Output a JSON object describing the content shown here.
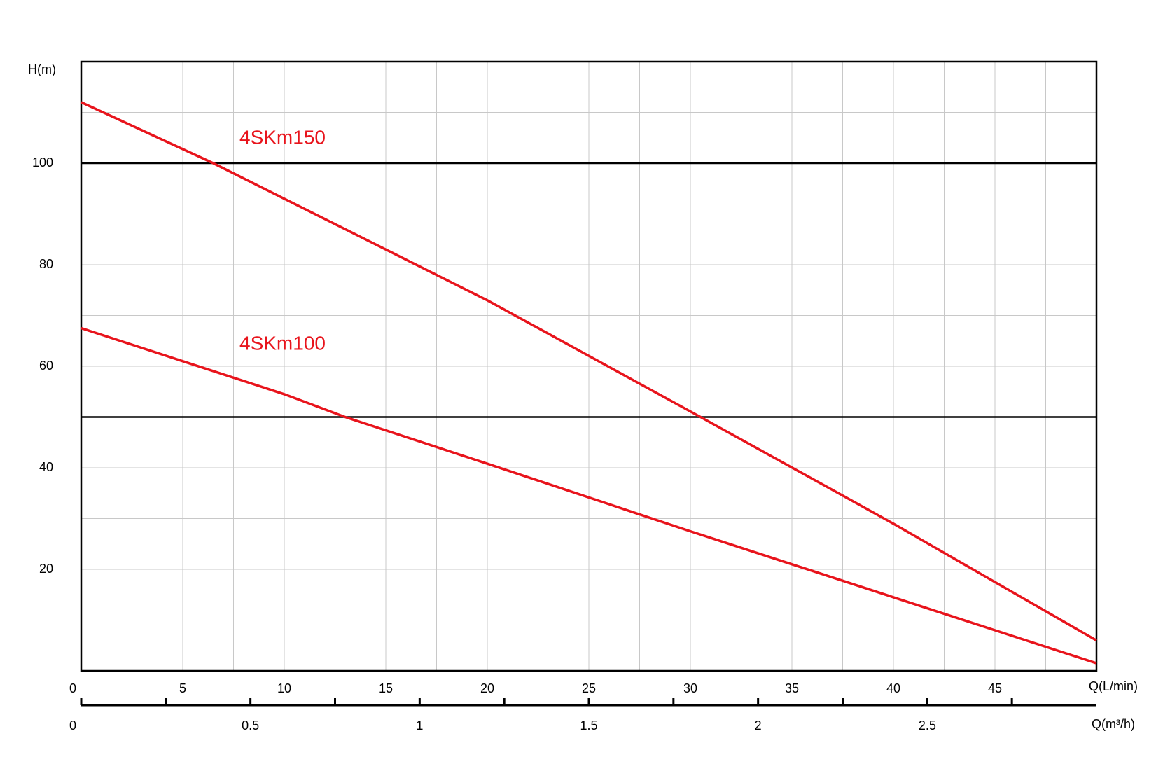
{
  "chart_data": {
    "type": "line",
    "y_label": "H(m)",
    "x_label": "Q(L/min)",
    "x2_label": "Q(m³/h)",
    "xlim": [
      0,
      50
    ],
    "xticks": [
      0,
      5,
      10,
      15,
      20,
      25,
      30,
      35,
      40,
      45
    ],
    "xminor_ticks": [
      2.5,
      7.5,
      12.5,
      17.5,
      22.5,
      27.5,
      32.5,
      37.5,
      42.5,
      47.5
    ],
    "x2lim": [
      0,
      3
    ],
    "x2ticks": [
      0,
      0.5,
      1,
      1.5,
      2,
      2.5
    ],
    "x2minor_ticks": [
      0.25,
      0.75,
      1.25,
      1.75,
      2.25,
      2.75
    ],
    "ylim": [
      0,
      120
    ],
    "yticks": [
      20,
      40,
      60,
      80,
      100
    ],
    "yminor_ticks": [
      10,
      30,
      50,
      70,
      90,
      110
    ],
    "emphasized_y": [
      50,
      100
    ],
    "grid": true,
    "series": [
      {
        "name": "4SKm150",
        "color": "#e8141c",
        "x": [
          0,
          6.5,
          10,
          20,
          30.5,
          40,
          50
        ],
        "values": [
          112,
          100,
          93,
          73,
          50,
          29,
          6
        ]
      },
      {
        "name": "4SKm100",
        "color": "#e8141c",
        "x": [
          0,
          10,
          13,
          20,
          30,
          40,
          50
        ],
        "values": [
          67.5,
          54.5,
          50,
          40.8,
          27.5,
          14.5,
          1.5
        ]
      }
    ]
  }
}
